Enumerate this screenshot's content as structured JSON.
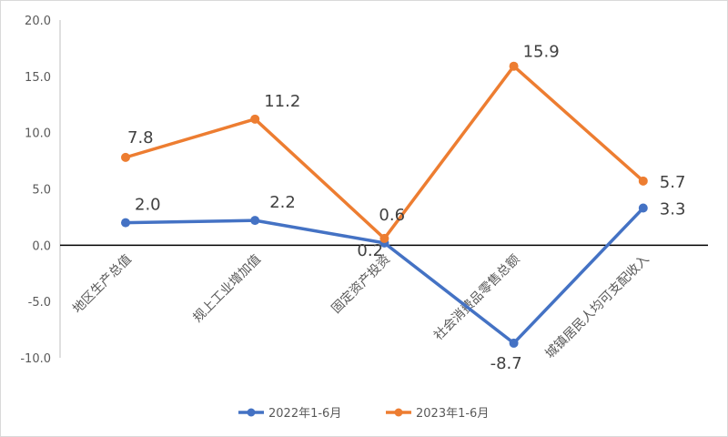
{
  "chart_data": {
    "type": "line",
    "title": "",
    "xlabel": "",
    "ylabel": "",
    "ylim": [
      -10,
      20
    ],
    "yticks": [
      20,
      15,
      10,
      5,
      0,
      -5,
      -10
    ],
    "ytick_labels": [
      "20.0",
      "15.0",
      "10.0",
      "5.0",
      "0.0",
      "-5.0",
      "-10.0"
    ],
    "categories": [
      "地区生产总值",
      "规上工业增加值",
      "固定资产投资",
      "社会消费品零售总额",
      "城镇居民人均可支配收入"
    ],
    "series": [
      {
        "name": "2022年1-6月",
        "color": "#4472C4",
        "values": [
          2.0,
          2.2,
          0.2,
          -8.7,
          3.3
        ],
        "labels": [
          "2.0",
          "2.2",
          "0.2",
          "-8.7",
          "3.3"
        ]
      },
      {
        "name": "2023年1-6月",
        "color": "#ED7D31",
        "values": [
          7.8,
          11.2,
          0.6,
          15.9,
          5.7
        ],
        "labels": [
          "7.8",
          "11.2",
          "0.6",
          "15.9",
          "5.7"
        ]
      }
    ],
    "grid": false,
    "legend": "bottom"
  }
}
